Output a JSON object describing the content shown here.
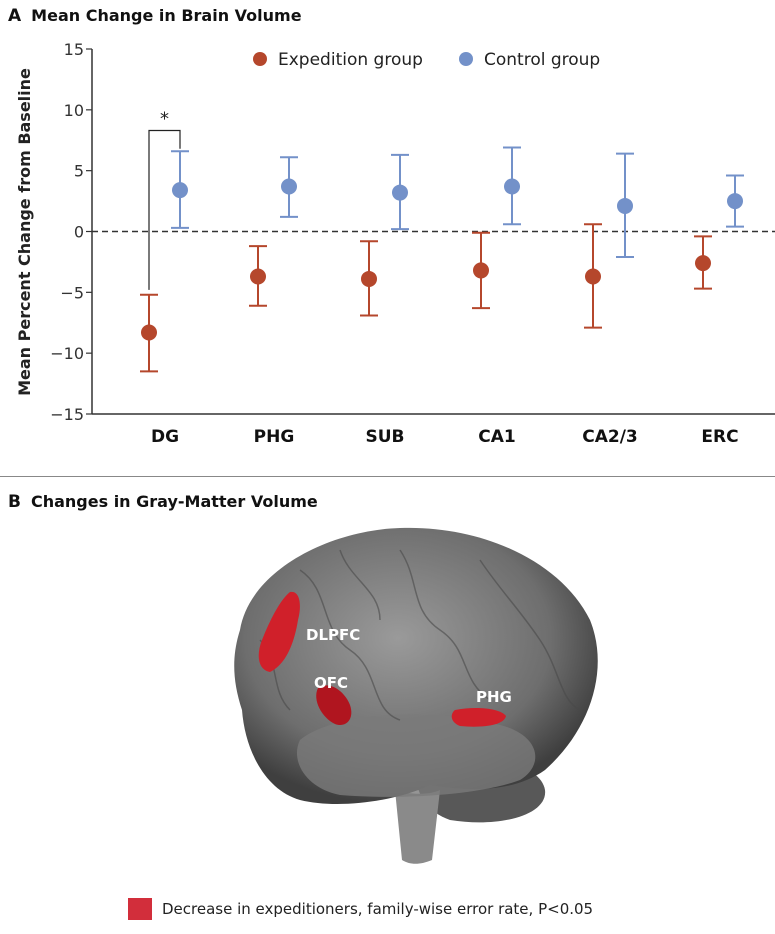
{
  "panel_a": {
    "letter": "A",
    "title": "Mean Change in Brain Volume"
  },
  "panel_b": {
    "letter": "B",
    "title": "Changes in Gray-Matter Volume",
    "regions": [
      "DLPFC",
      "OFC",
      "PHG"
    ],
    "legend": "Decrease in expeditioners, family-wise error rate, P<0.05",
    "legend_color": "#d22e3b"
  },
  "chart_data": {
    "type": "scatter",
    "title": "Mean Change in Brain Volume",
    "xlabel": "",
    "ylabel": "Mean Percent Change from Baseline",
    "ylim": [
      -15,
      15
    ],
    "yticks": [
      15,
      10,
      5,
      0,
      -5,
      -10,
      -15
    ],
    "ytick_labels": [
      "15",
      "10",
      "5",
      "0",
      "−5",
      "−10",
      "−15"
    ],
    "categories": [
      "DG",
      "PHG",
      "SUB",
      "CA1",
      "CA2/3",
      "ERC"
    ],
    "reference_line": 0,
    "legend_position": "top",
    "series": [
      {
        "name": "Expedition group",
        "color": "#b5472c",
        "values": [
          -8.3,
          -3.7,
          -3.9,
          -3.2,
          -3.7,
          -2.6
        ],
        "lower": [
          -11.5,
          -6.1,
          -6.9,
          -6.3,
          -7.9,
          -4.7
        ],
        "upper": [
          -5.2,
          -1.2,
          -0.8,
          -0.1,
          0.6,
          -0.4
        ]
      },
      {
        "name": "Control group",
        "color": "#7391c9",
        "values": [
          3.4,
          3.7,
          3.2,
          3.7,
          2.1,
          2.5
        ],
        "lower": [
          0.3,
          1.2,
          0.2,
          0.6,
          -2.1,
          0.4
        ],
        "upper": [
          6.6,
          6.1,
          6.3,
          6.9,
          6.4,
          4.6
        ]
      }
    ],
    "annotations": [
      {
        "text": "*",
        "category": "DG",
        "meaning": "significant difference bracket"
      }
    ]
  }
}
